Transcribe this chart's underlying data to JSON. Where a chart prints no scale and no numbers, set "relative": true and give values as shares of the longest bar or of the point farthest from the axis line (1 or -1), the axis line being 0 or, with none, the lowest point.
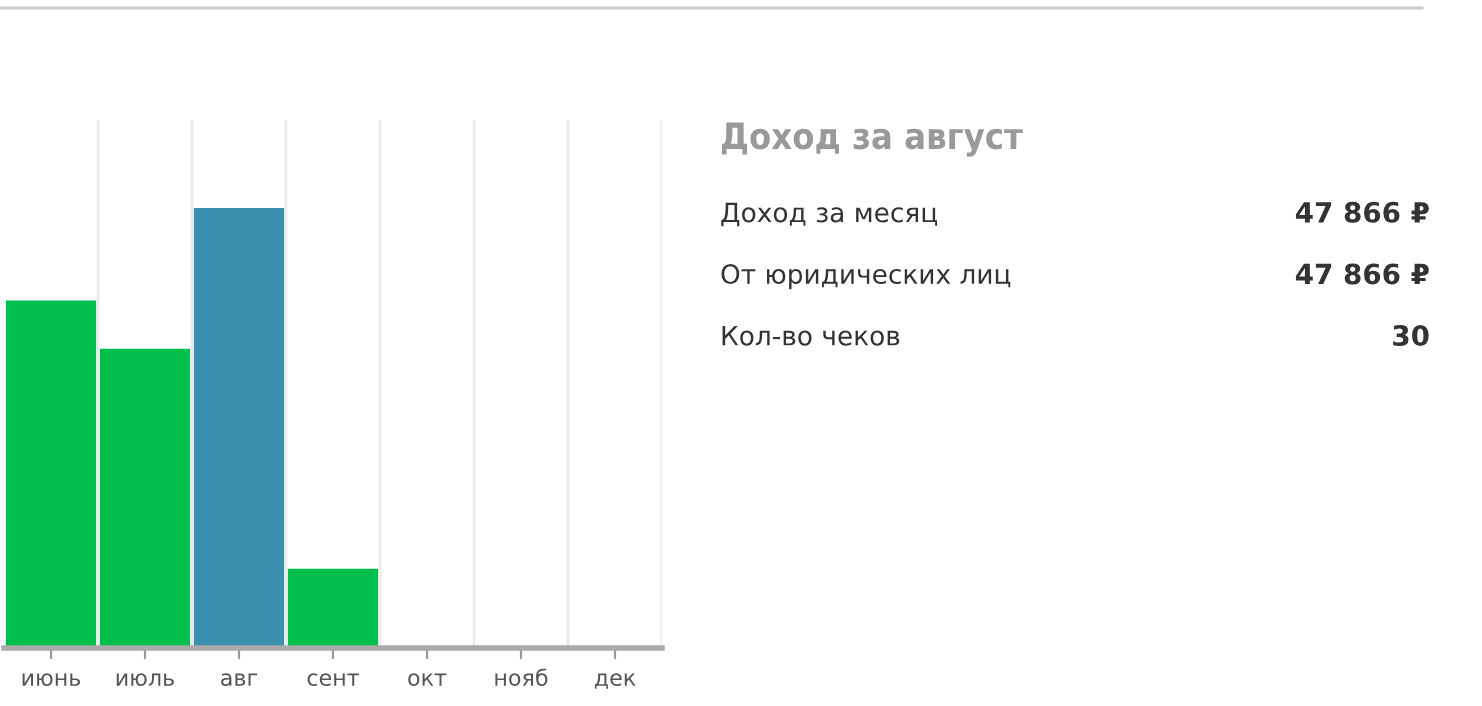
{
  "chart_data": [
    {
      "type": "bar",
      "relative": true,
      "categories": [
        "июнь",
        "июль",
        "авг",
        "сент",
        "окт",
        "нояб",
        "дек"
      ],
      "values": [
        0.79,
        0.68,
        1,
        0.18,
        0,
        0,
        0
      ],
      "colors": [
        "#00bf4c",
        "#00bf4c",
        "#3a8fae",
        "#00bf4c",
        "#00bf4c",
        "#00bf4c",
        "#00bf4c"
      ],
      "grid": "x",
      "tick_labels": "x"
    },
    {
      "type": "other",
      "title": "Доход за август",
      "annotations": [
        "Доход за месяц",
        "47 866 ₽",
        "От юридических лиц",
        "47 866 ₽",
        "Кол-во чеков",
        "30"
      ]
    }
  ]
}
